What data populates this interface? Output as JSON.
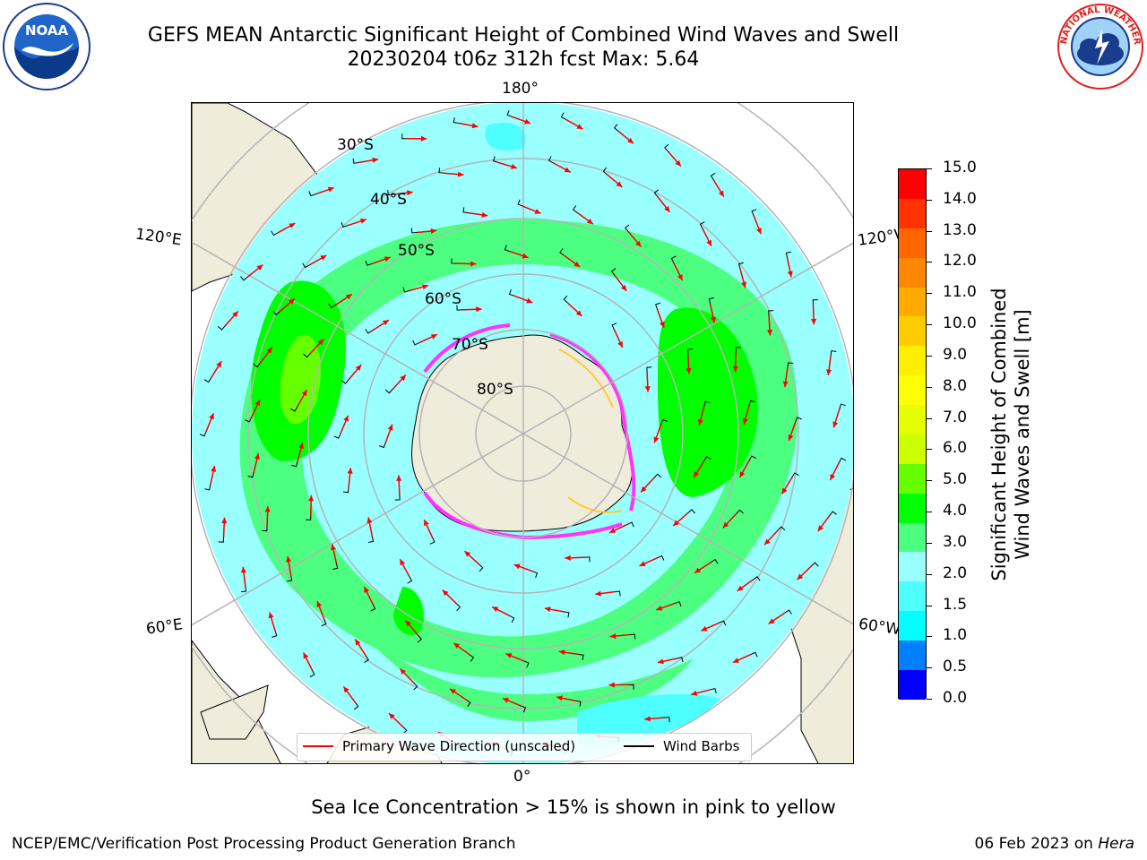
{
  "header": {
    "title_line1": "GEFS MEAN Antarctic Significant Height of Combined Wind Waves and Swell",
    "title_line2": "20230204 t06z 312h fcst   Max: 5.64"
  },
  "logos": {
    "noaa_text": "NOAA",
    "noaa_ring_text": "NATIONAL OCEANIC AND ATMOSPHERIC ADMINISTRATION · U.S. DEPARTMENT OF COMMERCE",
    "nws_ring_text": "NATIONAL WEATHER SERVICE"
  },
  "map": {
    "longitude_labels": [
      "180°",
      "120°E",
      "120°W",
      "60°E",
      "60°W",
      "0°"
    ],
    "latitude_labels": [
      "30°S",
      "40°S",
      "50°S",
      "60°S",
      "70°S",
      "80°S"
    ],
    "colors": {
      "land": "#efecdc",
      "antarctica": "#efecdc",
      "wave_2_3": "#99ffff",
      "wave_3_4": "#4dff80",
      "wave_4_5": "#00ff00",
      "wave_5_6": "#66ff00",
      "wave_1_5_2": "#4dffff",
      "sea_ice": "#ff33ff",
      "sea_ice_high": "#ffcc33",
      "gridlines": "#b4b4b4",
      "wave_arrow": "#ff0000",
      "wind_barb": "#000000"
    },
    "projection": "south polar stereographic"
  },
  "legend": {
    "primary_wave_direction": "Primary Wave Direction (unscaled)",
    "wind_barbs": "Wind Barbs"
  },
  "colorbar": {
    "label_line1": "Significant Height of Combined",
    "label_line2": "Wind Waves and Swell [m]",
    "ticks": [
      "15.0",
      "14.0",
      "13.0",
      "12.0",
      "11.0",
      "10.0",
      "9.0",
      "8.0",
      "7.0",
      "6.0",
      "5.0",
      "4.0",
      "3.0",
      "2.0",
      "1.5",
      "1.0",
      "0.5",
      "0.0"
    ],
    "colors_top_to_bottom": [
      "#ff0000",
      "#ff3300",
      "#ff6600",
      "#ff8800",
      "#ffaa00",
      "#ffcc00",
      "#ffee00",
      "#ffff00",
      "#e6ff00",
      "#ccff00",
      "#66ff00",
      "#00ff00",
      "#4dff80",
      "#99ffff",
      "#4dffff",
      "#00ffff",
      "#0080ff",
      "#0000ff"
    ]
  },
  "caption": "Sea Ice Concentration > 15% is shown in pink to yellow",
  "footer": {
    "left": "NCEP/EMC/Verification Post Processing Product Generation Branch",
    "right_date": "06 Feb 2023 on ",
    "right_host": "Hera"
  }
}
